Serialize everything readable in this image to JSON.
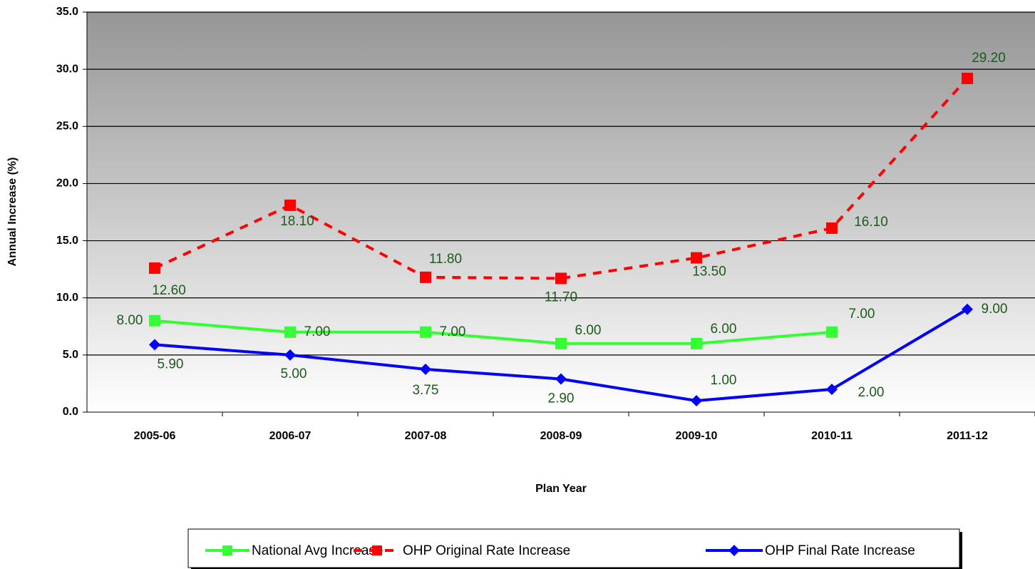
{
  "chart_data": {
    "type": "line",
    "x_label": "Plan Year",
    "y_label": "Annual Increase  (%)",
    "categories": [
      "2005-06",
      "2006-07",
      "2007-08",
      "2008-09",
      "2009-10",
      "2010-11",
      "2011-12"
    ],
    "series": [
      {
        "name": "National Avg Increase",
        "color": "#33ff33",
        "marker": "square",
        "dashed": false,
        "values": [
          8,
          7,
          7,
          6,
          6,
          7,
          null
        ],
        "value_labels": [
          "8.00",
          "7.00",
          "7.00",
          "6.00",
          "6.00",
          "7.00",
          null
        ]
      },
      {
        "name": "OHP Original Rate Increase",
        "color": "#ff0000",
        "marker": "square",
        "dashed": true,
        "values": [
          12.6,
          18.1,
          11.8,
          11.7,
          13.5,
          16.1,
          29.2
        ],
        "value_labels": [
          "12.60",
          "18.10",
          "11.80",
          "11.70",
          "13.50",
          "16.10",
          "29.20"
        ]
      },
      {
        "name": "OHP Final Rate Increase",
        "color": "#0000ff",
        "marker": "diamond",
        "dashed": false,
        "values": [
          5.9,
          5,
          3.75,
          2.9,
          1,
          2,
          9
        ],
        "value_labels": [
          "5.90",
          "5.00",
          "3.75",
          "2.90",
          "1.00",
          "2.00",
          "9.00"
        ]
      }
    ],
    "ylim": [
      0,
      35
    ],
    "yticks": [
      {
        "value": 0,
        "label": "0.0"
      },
      {
        "value": 5,
        "label": "5.0"
      },
      {
        "value": 10,
        "label": "10.0"
      },
      {
        "value": 15,
        "label": "15.0"
      },
      {
        "value": 20,
        "label": "20.0"
      },
      {
        "value": 25,
        "label": "25.0"
      },
      {
        "value": 30,
        "label": "30.0"
      },
      {
        "value": 35,
        "label": "35.0"
      }
    ],
    "grid": true,
    "legend": "bottom"
  }
}
